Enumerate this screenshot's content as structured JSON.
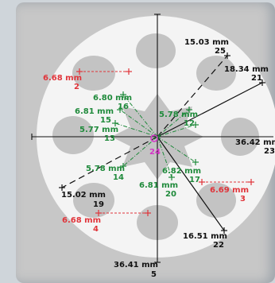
{
  "colors": {
    "background": "#cfd5da",
    "viewport": "#c7c7c7",
    "disk": "#f4f4f4",
    "holes": "#c3c3c3",
    "black_label": "#111111",
    "red_label": "#e0343a",
    "green_label": "#1f8a3b",
    "center_marker": "#d633c8"
  },
  "measurements": [
    {
      "id": "2",
      "value": "6.68 mm",
      "color": "red"
    },
    {
      "id": "25",
      "value": "15.03 mm",
      "color": "black"
    },
    {
      "id": "21",
      "value": "18.34 mm",
      "color": "black"
    },
    {
      "id": "16",
      "value": "6.80 mm",
      "color": "green"
    },
    {
      "id": "15",
      "value": "6.81 mm",
      "color": "green"
    },
    {
      "id": "12",
      "value": "5.78 mm",
      "color": "green"
    },
    {
      "id": "13",
      "value": "5.77 mm",
      "color": "green"
    },
    {
      "id": "23",
      "value": "36.42 mm",
      "color": "black"
    },
    {
      "id": "14",
      "value": "5.78 mm",
      "color": "green"
    },
    {
      "id": "17",
      "value": "6.82 mm",
      "color": "green"
    },
    {
      "id": "3",
      "value": "6.69 mm",
      "color": "red"
    },
    {
      "id": "20",
      "value": "6.81 mm",
      "color": "green"
    },
    {
      "id": "19",
      "value": "15.02 mm",
      "color": "black"
    },
    {
      "id": "4",
      "value": "6.68 mm",
      "color": "red"
    },
    {
      "id": "22",
      "value": "16.51 mm",
      "color": "black"
    },
    {
      "id": "5",
      "value": "36.41 mm",
      "color": "black"
    }
  ],
  "center_marker": {
    "id": "24"
  }
}
